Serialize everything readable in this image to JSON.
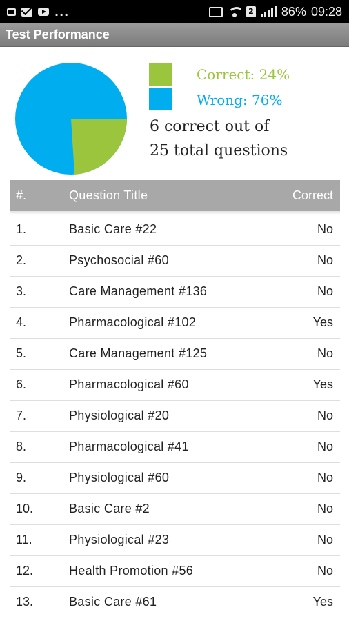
{
  "status_bar": {
    "left_icons": [
      "photo-icon",
      "mail-icon",
      "youtube-icon"
    ],
    "overflow": "...",
    "right_icons": [
      "cast-icon",
      "wifi-icon",
      "sim-icon",
      "signal-icon"
    ],
    "sim_number": "2",
    "battery": "86%",
    "time": "09:28"
  },
  "title_bar": {
    "title": "Test Performance"
  },
  "summary": {
    "correct_label": "Correct: 24%",
    "wrong_label": "Wrong: 76%",
    "line1": "6 correct out of",
    "line2": "25 total questions",
    "correct_fraction": 0.24,
    "colors": {
      "correct": "#9bc53d",
      "wrong": "#00aeef"
    }
  },
  "table": {
    "headers": {
      "num": "#.",
      "title": "Question Title",
      "correct": "Correct"
    },
    "rows": [
      {
        "num": "1.",
        "title": "Basic Care #22",
        "correct": "No"
      },
      {
        "num": "2.",
        "title": "Psychosocial #60",
        "correct": "No"
      },
      {
        "num": "3.",
        "title": "Care Management #136",
        "correct": "No"
      },
      {
        "num": "4.",
        "title": "Pharmacological #102",
        "correct": "Yes"
      },
      {
        "num": "5.",
        "title": "Care Management #125",
        "correct": "No"
      },
      {
        "num": "6.",
        "title": "Pharmacological #60",
        "correct": "Yes"
      },
      {
        "num": "7.",
        "title": "Physiological #20",
        "correct": "No"
      },
      {
        "num": "8.",
        "title": "Pharmacological #41",
        "correct": "No"
      },
      {
        "num": "9.",
        "title": "Physiological #60",
        "correct": "No"
      },
      {
        "num": "10.",
        "title": "Basic Care #2",
        "correct": "No"
      },
      {
        "num": "11.",
        "title": "Physiological #23",
        "correct": "No"
      },
      {
        "num": "12.",
        "title": "Health Promotion #56",
        "correct": "No"
      },
      {
        "num": "13.",
        "title": "Basic Care #61",
        "correct": "Yes"
      }
    ]
  }
}
